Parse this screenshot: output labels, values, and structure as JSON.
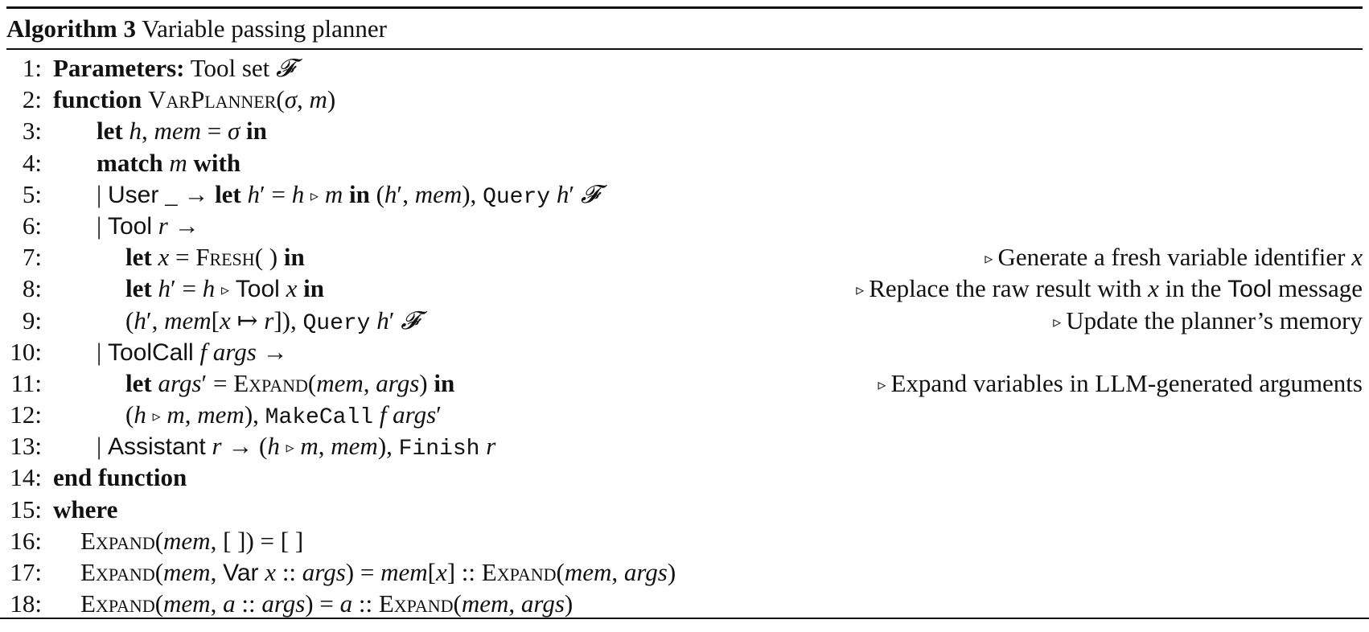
{
  "algorithm": {
    "label": "Algorithm 3",
    "title": "Variable passing planner"
  },
  "lines": [
    {
      "n": "1:",
      "indent": 0,
      "code": "<span class=\"b\">Parameters:</span> Tool set <span class=\"i\">𝓕</span>"
    },
    {
      "n": "2:",
      "indent": 0,
      "code": "<span class=\"b\">function</span> <span class=\"sc\">VarPlanner</span>(<span class=\"i\">σ</span>, <span class=\"i\">m</span>)"
    },
    {
      "n": "3:",
      "indent": 1,
      "code": "<span class=\"b\">let</span> <span class=\"i\">h</span>, <span class=\"i\">mem</span> = <span class=\"i\">σ</span> <span class=\"b\">in</span>"
    },
    {
      "n": "4:",
      "indent": 1,
      "code": "<span class=\"b\">match</span> <span class=\"i\">m</span> <span class=\"b\">with</span>"
    },
    {
      "n": "5:",
      "indent": 1,
      "code": "| <span class=\"ss\">User</span> _ → <span class=\"b\">let</span> <span class=\"i\">h</span>′ = <span class=\"i\">h</span> <span class=\"tri-in\">▹</span> <span class=\"i\">m</span> <span class=\"b\">in</span> (<span class=\"i\">h</span>′, <span class=\"i\">mem</span>), <span class=\"tt\">Query</span> <span class=\"i\">h</span>′ <span class=\"i\">𝓕</span>"
    },
    {
      "n": "6:",
      "indent": 1,
      "code": "| <span class=\"ss\">Tool</span> <span class=\"i\">r</span> →"
    },
    {
      "n": "7:",
      "indent": 2,
      "code": "<span class=\"b\">let</span> <span class=\"i\">x</span> = <span class=\"sc\">Fresh</span>( ) <span class=\"b\">in</span>",
      "comment": "Generate a fresh variable identifier <span class=\"i\">x</span>"
    },
    {
      "n": "8:",
      "indent": 2,
      "code": "<span class=\"b\">let</span> <span class=\"i\">h</span>′ = <span class=\"i\">h</span> <span class=\"tri-in\">▹</span> <span class=\"ss\">Tool</span> <span class=\"i\">x</span> <span class=\"b\">in</span>",
      "comment": "Replace the raw result with <span class=\"i\">x</span> in the <span class=\"ss\">Tool</span> message"
    },
    {
      "n": "9:",
      "indent": 2,
      "code": "(<span class=\"i\">h</span>′, <span class=\"i\">mem</span>[<span class=\"i\">x</span> ↦ <span class=\"i\">r</span>]), <span class=\"tt\">Query</span> <span class=\"i\">h</span>′ <span class=\"i\">𝓕</span>",
      "comment": "Update the planner’s memory"
    },
    {
      "n": "10:",
      "indent": 1,
      "code": "| <span class=\"ss\">ToolCall</span> <span class=\"i\">f args</span> →"
    },
    {
      "n": "11:",
      "indent": 2,
      "code": "<span class=\"b\">let</span> <span class=\"i\">args</span>′ = <span class=\"sc\">Expand</span>(<span class=\"i\">mem</span>, <span class=\"i\">args</span>) <span class=\"b\">in</span>",
      "comment": "Expand variables in LLM-generated arguments"
    },
    {
      "n": "12:",
      "indent": 2,
      "code": "(<span class=\"i\">h</span> <span class=\"tri-in\">▹</span> <span class=\"i\">m</span>, <span class=\"i\">mem</span>), <span class=\"tt\">MakeCall</span> <span class=\"i\">f args</span>′"
    },
    {
      "n": "13:",
      "indent": 1,
      "code": "| <span class=\"ss\">Assistant</span> <span class=\"i\">r</span> → (<span class=\"i\">h</span> <span class=\"tri-in\">▹</span> <span class=\"i\">m</span>, <span class=\"i\">mem</span>), <span class=\"tt\">Finish</span> <span class=\"i\">r</span>"
    },
    {
      "n": "14:",
      "indent": 0,
      "code": "<span class=\"b\">end function</span>"
    },
    {
      "n": "15:",
      "indent": 0,
      "code": "<span class=\"b\">where</span>"
    },
    {
      "n": "16:",
      "indent": 3,
      "code": "<span class=\"sc\">Expand</span>(<span class=\"i\">mem</span>, [ ]) = [ ]"
    },
    {
      "n": "17:",
      "indent": 3,
      "code": "<span class=\"sc\">Expand</span>(<span class=\"i\">mem</span>, <span class=\"ss\">Var</span> <span class=\"i\">x</span> :: <span class=\"i\">args</span>) = <span class=\"i\">mem</span>[<span class=\"i\">x</span>] :: <span class=\"sc\">Expand</span>(<span class=\"i\">mem</span>, <span class=\"i\">args</span>)"
    },
    {
      "n": "18:",
      "indent": 3,
      "code": "<span class=\"sc\">Expand</span>(<span class=\"i\">mem</span>, <span class=\"i\">a</span> :: <span class=\"i\">args</span>) = <span class=\"i\">a</span> :: <span class=\"sc\">Expand</span>(<span class=\"i\">mem</span>, <span class=\"i\">args</span>)"
    }
  ]
}
